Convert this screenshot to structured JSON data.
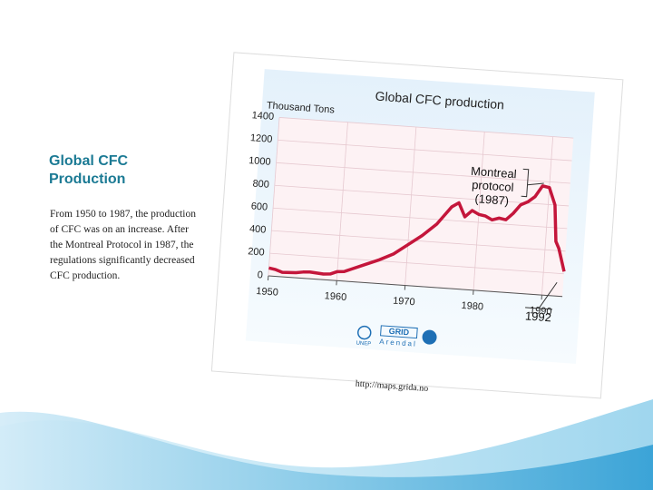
{
  "slide": {
    "title": "Global CFC Production",
    "body": "From 1950 to 1987, the production of CFC was on an increase. After the Montreal Protocol in 1987, the regulations significantly decreased CFC production.",
    "source_url": "http://maps.grida.no"
  },
  "chart_data": {
    "type": "line",
    "title": "Global CFC production",
    "y_label": "Thousand Tons",
    "x": [
      1950,
      1951,
      1952,
      1954,
      1955,
      1956,
      1957,
      1958,
      1959,
      1960,
      1961,
      1962,
      1964,
      1966,
      1968,
      1970,
      1972,
      1974,
      1975,
      1976,
      1977,
      1978,
      1979,
      1980,
      1981,
      1982,
      1983,
      1984,
      1985,
      1986,
      1987,
      1988,
      1989,
      1990,
      1991,
      1991.5,
      1992,
      1993
    ],
    "series": [
      {
        "name": "CFC production",
        "color": "#c4163b",
        "values": [
          70,
          60,
          40,
          45,
          55,
          60,
          55,
          50,
          55,
          80,
          85,
          110,
          160,
          210,
          270,
          360,
          450,
          560,
          640,
          720,
          760,
          640,
          700,
          670,
          660,
          630,
          650,
          640,
          700,
          780,
          810,
          860,
          960,
          950,
          800,
          480,
          420,
          220
        ]
      }
    ],
    "xlim": [
      1950,
      1993
    ],
    "xticks": [
      1950,
      1960,
      1970,
      1980,
      1990
    ],
    "ylim": [
      0,
      1400
    ],
    "yticks": [
      0,
      200,
      400,
      600,
      800,
      1000,
      1200,
      1400
    ],
    "grid": true,
    "annotations": [
      {
        "lines": [
          "Montreal",
          "protocol",
          "(1987)"
        ]
      },
      {
        "lines": [
          "1992"
        ]
      }
    ],
    "source_logos": [
      "UNEP",
      "GRID",
      "Arendal"
    ]
  }
}
